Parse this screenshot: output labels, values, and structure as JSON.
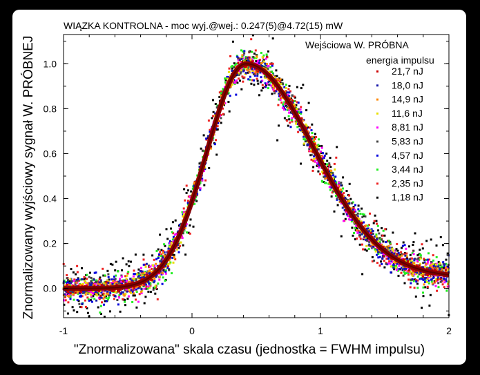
{
  "chart_data": {
    "type": "scatter",
    "title": "WIĄZKA KONTROLNA - moc wyj.@wej.: 0.247(5)@4.72(15) mW",
    "xlabel": "\"Znormalizowana\" skala czasu (jednostka = FWHM impulsu)",
    "ylabel": "Znormalizowany wyjściowy sygnał W. PRÓBNEJ",
    "xlim": [
      -1,
      2
    ],
    "ylim": [
      -0.13,
      1.13
    ],
    "x_ticks": [
      "-1",
      "0",
      "1",
      "2"
    ],
    "y_ticks": [
      "0.0",
      "0.2",
      "0.4",
      "0.6",
      "0.8",
      "1.0"
    ],
    "x_tick_values": [
      -1,
      0,
      1,
      2
    ],
    "y_tick_values": [
      0,
      0.2,
      0.4,
      0.6,
      0.8,
      1.0
    ],
    "grid": false,
    "legend_position": "top-right",
    "legend_title_1": "Wejściowa W. PRÓBNA",
    "legend_title_2": "energia impulsu",
    "curve_model": {
      "peak_x": 0.42,
      "peak_y": 1.0,
      "rise_half_width": 0.36,
      "fall_half_width": 0.62,
      "baseline_left": 0.0,
      "baseline_right": 0.05
    },
    "series": [
      {
        "name": "21,7 nJ",
        "color": "#cc0000",
        "noise": 0.012
      },
      {
        "name": "18,0 nJ",
        "color": "#1a1aaa",
        "noise": 0.018
      },
      {
        "name": "14,9 nJ",
        "color": "#ff8800",
        "noise": 0.02
      },
      {
        "name": "11,6 nJ",
        "color": "#e8e000",
        "noise": 0.022
      },
      {
        "name": "8,81 nJ",
        "color": "#ff00ff",
        "noise": 0.025
      },
      {
        "name": "5,83 nJ",
        "color": "#444444",
        "noise": 0.028
      },
      {
        "name": "4,57 nJ",
        "color": "#0000dd",
        "noise": 0.032
      },
      {
        "name": "3,44 nJ",
        "color": "#22ee22",
        "noise": 0.038
      },
      {
        "name": "2,35 nJ",
        "color": "#ee2222",
        "noise": 0.045
      },
      {
        "name": "1,18 nJ",
        "color": "#000000",
        "noise": 0.07
      }
    ]
  }
}
